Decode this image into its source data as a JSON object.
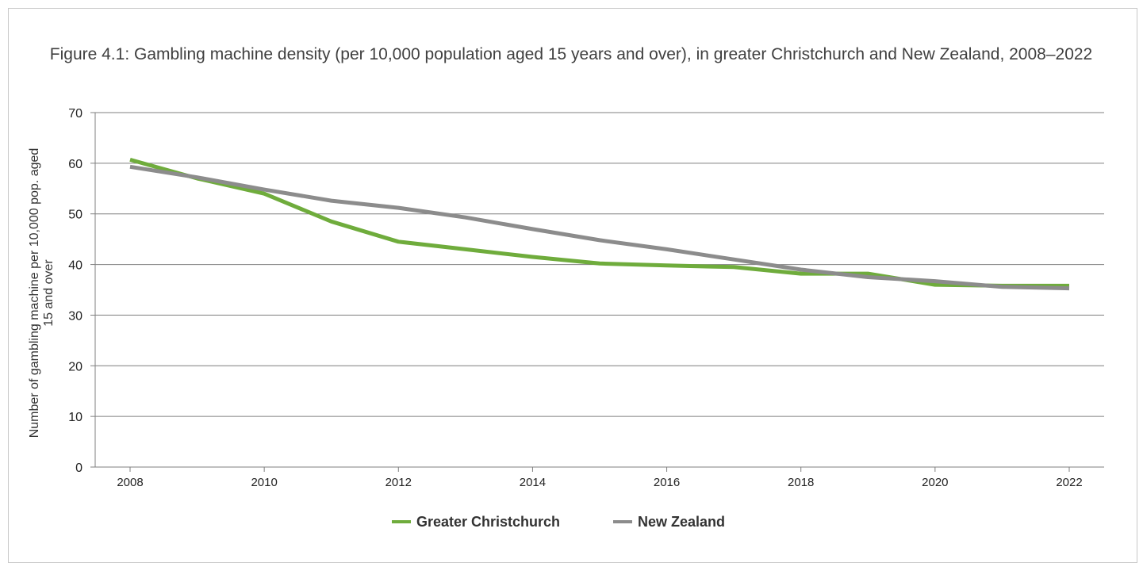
{
  "chart_data": {
    "type": "line",
    "title": "Figure 4.1: Gambling machine density (per 10,000 population aged 15 years and over), in greater Christchurch and New Zealand, 2008–2022",
    "xlabel": "",
    "ylabel_lines": [
      "Number of gambling machine per 10,000 pop. aged",
      "15 and over"
    ],
    "x": [
      2008,
      2009,
      2010,
      2011,
      2012,
      2013,
      2014,
      2015,
      2016,
      2017,
      2018,
      2019,
      2020,
      2021,
      2022
    ],
    "x_ticks": [
      "2008",
      "2010",
      "2012",
      "2014",
      "2016",
      "2018",
      "2020",
      "2022"
    ],
    "y_ticks": [
      "0",
      "10",
      "20",
      "30",
      "40",
      "50",
      "60",
      "70"
    ],
    "ylim": [
      0,
      70
    ],
    "xlim": [
      2008,
      2022
    ],
    "grid": "horizontal",
    "legend_position": "bottom",
    "series": [
      {
        "name": "Greater Christchurch",
        "color": "#6fac3c",
        "values": [
          60.7,
          57.0,
          54.0,
          48.5,
          44.5,
          43.0,
          41.5,
          40.2,
          39.8,
          39.5,
          38.2,
          38.2,
          36.0,
          35.8,
          35.8
        ]
      },
      {
        "name": "New Zealand",
        "color": "#8c8c8c",
        "values": [
          59.3,
          57.2,
          54.8,
          52.6,
          51.2,
          49.3,
          47.0,
          44.8,
          43.0,
          41.0,
          39.0,
          37.5,
          36.7,
          35.6,
          35.3
        ]
      }
    ]
  }
}
